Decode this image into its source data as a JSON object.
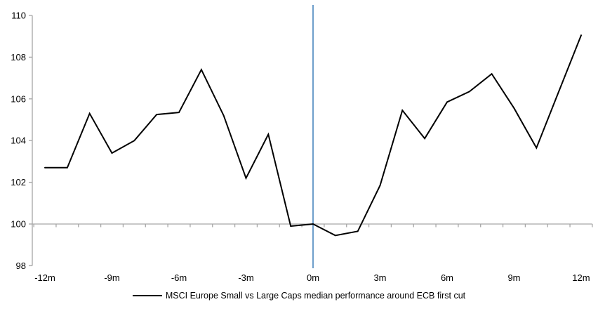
{
  "chart_data": {
    "type": "line",
    "x": [
      -12,
      -11,
      -10,
      -9,
      -8,
      -7,
      -6,
      -5,
      -4,
      -3,
      -2,
      -1,
      0,
      1,
      2,
      3,
      4,
      5,
      6,
      7,
      8,
      9,
      10,
      11,
      12
    ],
    "series": [
      {
        "name": "MSCI Europe Small vs Large Caps median performance around ECB first cut",
        "values": [
          102.7,
          102.7,
          105.3,
          103.4,
          104.0,
          105.25,
          105.35,
          107.4,
          105.2,
          102.2,
          104.3,
          99.9,
          100.0,
          99.45,
          99.65,
          101.85,
          105.45,
          104.1,
          105.85,
          106.35,
          107.2,
          105.55,
          103.65,
          106.35,
          109.05
        ]
      }
    ],
    "title": "",
    "xlabel": "",
    "ylabel": "",
    "ylim": [
      98,
      110
    ],
    "y_ticks": [
      98,
      100,
      102,
      104,
      106,
      108,
      110
    ],
    "x_labeled_months": [
      -12,
      -9,
      -6,
      -3,
      0,
      3,
      6,
      9,
      12
    ],
    "x_tick_labels": [
      "-12m",
      "-9m",
      "-6m",
      "-3m",
      "0m",
      "3m",
      "6m",
      "9m",
      "12m"
    ],
    "x_axis_cross_y": 100,
    "event_line_x": 0,
    "grid": false,
    "legend_position": "bottom-center",
    "colors": {
      "series_line": "#000000",
      "event_line": "#71a0cc",
      "axis": "#a6a6a6",
      "tick_text": "#000000"
    }
  }
}
